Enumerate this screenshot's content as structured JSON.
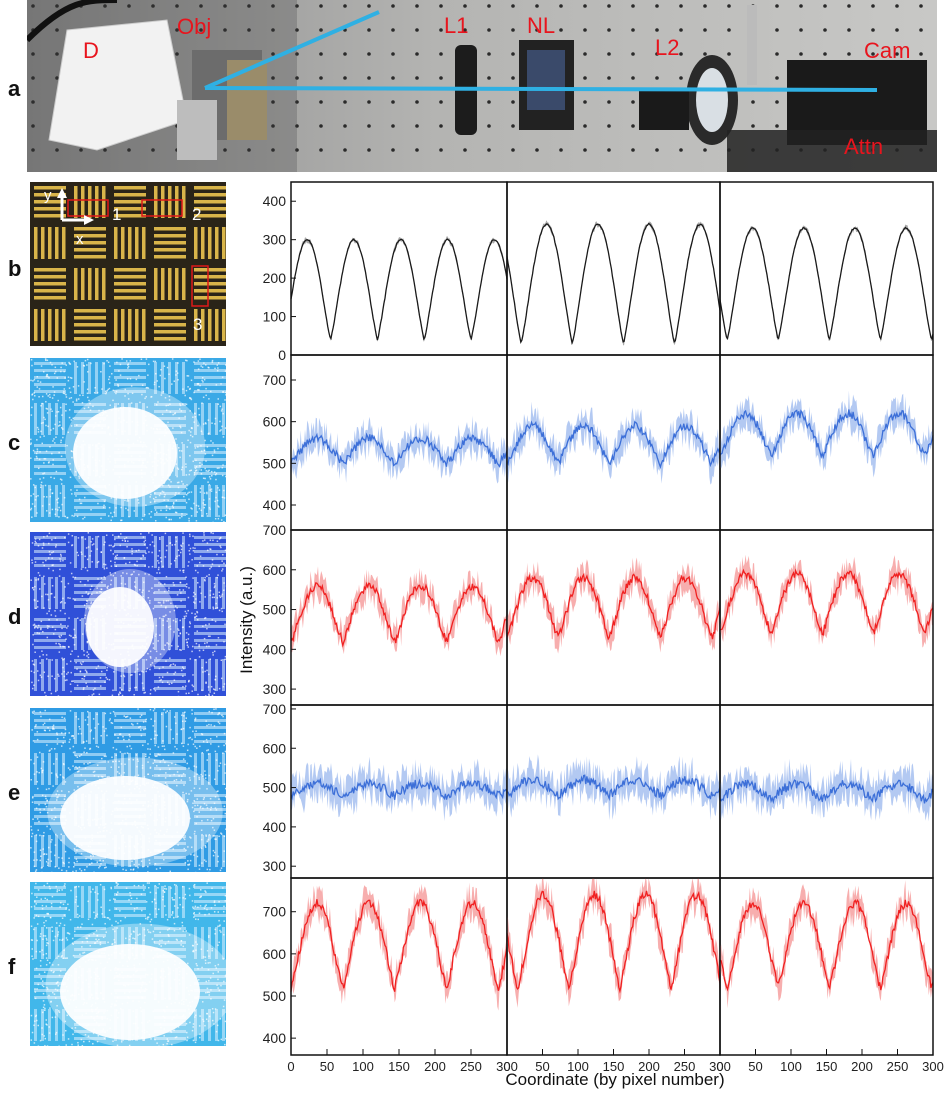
{
  "panels": [
    "a",
    "b",
    "c",
    "d",
    "e",
    "f"
  ],
  "photo_labels": {
    "detector": "D",
    "objective": "Obj",
    "lens1": "L1",
    "nonlinear": "NL",
    "lens2": "L2",
    "camera": "Cam",
    "attenuator": "Attn"
  },
  "target_labels": {
    "axis_y": "y",
    "axis_x": "x",
    "roi1": "1",
    "roi2": "2",
    "roi3": "3"
  },
  "colors": {
    "photo_label": "#e8141d",
    "beam_line": "#2fb0e3",
    "series_b": "#1a1a1a",
    "series_b_band": "#9a9a9a",
    "series_blue": "#3c6fd8",
    "series_blue_band": "#a6bff0",
    "series_red": "#f02020",
    "series_red_band": "#f6a0a0"
  },
  "chart_data": {
    "type": "line",
    "xlabel": "Coordinate (by pixel number)",
    "ylabel": "Intensity (a.u.)",
    "x_ticks": [
      0,
      50,
      100,
      150,
      200,
      250,
      300
    ],
    "xlim": [
      0,
      300
    ],
    "columns": 3,
    "rows": [
      {
        "panel": "b",
        "ylim": [
          0,
          450
        ],
        "y_ticks": [
          0,
          100,
          200,
          300,
          400
        ],
        "color": "black",
        "periods": [
          65,
          72,
          72
        ],
        "phase": [
          10,
          -20,
          -10
        ],
        "baseline": [
          40,
          30,
          40
        ],
        "peak": [
          300,
          340,
          330
        ]
      },
      {
        "panel": "c",
        "ylim": [
          340,
          760
        ],
        "y_ticks": [
          400,
          500,
          600,
          700
        ],
        "color": "blue",
        "periods": [
          72,
          72,
          72
        ],
        "phase": [
          0,
          0,
          0
        ],
        "baseline": [
          500,
          500,
          520
        ],
        "peak": [
          560,
          590,
          620
        ]
      },
      {
        "panel": "d",
        "ylim": [
          260,
          700
        ],
        "y_ticks": [
          300,
          400,
          500,
          600,
          700
        ],
        "color": "red",
        "periods": [
          72,
          72,
          72
        ],
        "phase": [
          0,
          0,
          0
        ],
        "baseline": [
          420,
          430,
          440
        ],
        "peak": [
          560,
          580,
          590
        ]
      },
      {
        "panel": "e",
        "ylim": [
          270,
          710
        ],
        "y_ticks": [
          300,
          400,
          500,
          600,
          700
        ],
        "color": "blue",
        "periods": [
          72,
          72,
          72
        ],
        "phase": [
          0,
          0,
          0
        ],
        "baseline": [
          480,
          480,
          470
        ],
        "peak": [
          510,
          520,
          510
        ]
      },
      {
        "panel": "f",
        "ylim": [
          360,
          780
        ],
        "y_ticks": [
          400,
          500,
          600,
          700
        ],
        "color": "red",
        "periods": [
          72,
          72,
          72
        ],
        "phase": [
          0,
          -15,
          -10
        ],
        "baseline": [
          520,
          520,
          520
        ],
        "peak": [
          720,
          740,
          720
        ]
      }
    ]
  }
}
